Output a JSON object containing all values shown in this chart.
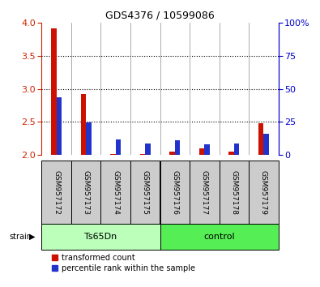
{
  "title": "GDS4376 / 10599086",
  "samples": [
    "GSM957172",
    "GSM957173",
    "GSM957174",
    "GSM957175",
    "GSM957176",
    "GSM957177",
    "GSM957178",
    "GSM957179"
  ],
  "red_values": [
    3.92,
    2.92,
    2.02,
    2.01,
    2.05,
    2.1,
    2.05,
    2.48
  ],
  "blue_values": [
    2.88,
    2.49,
    2.23,
    2.17,
    2.22,
    2.16,
    2.18,
    2.32
  ],
  "ylim": [
    2.0,
    4.0
  ],
  "yticks": [
    2.0,
    2.5,
    3.0,
    3.5,
    4.0
  ],
  "right_yticks": [
    0,
    25,
    50,
    75,
    100
  ],
  "right_ylabels": [
    "0",
    "25",
    "50",
    "75",
    "100%"
  ],
  "groups": [
    {
      "label": "Ts65Dn",
      "start": 0,
      "end": 4,
      "color": "#bbffbb"
    },
    {
      "label": "control",
      "start": 4,
      "end": 8,
      "color": "#55ee55"
    }
  ],
  "strain_label": "strain",
  "bar_width": 0.18,
  "red_color": "#cc1100",
  "blue_color": "#2233cc",
  "grid_color": "black",
  "left_axis_color": "#cc2200",
  "right_axis_color": "#0000cc",
  "legend_red": "transformed count",
  "legend_blue": "percentile rank within the sample"
}
